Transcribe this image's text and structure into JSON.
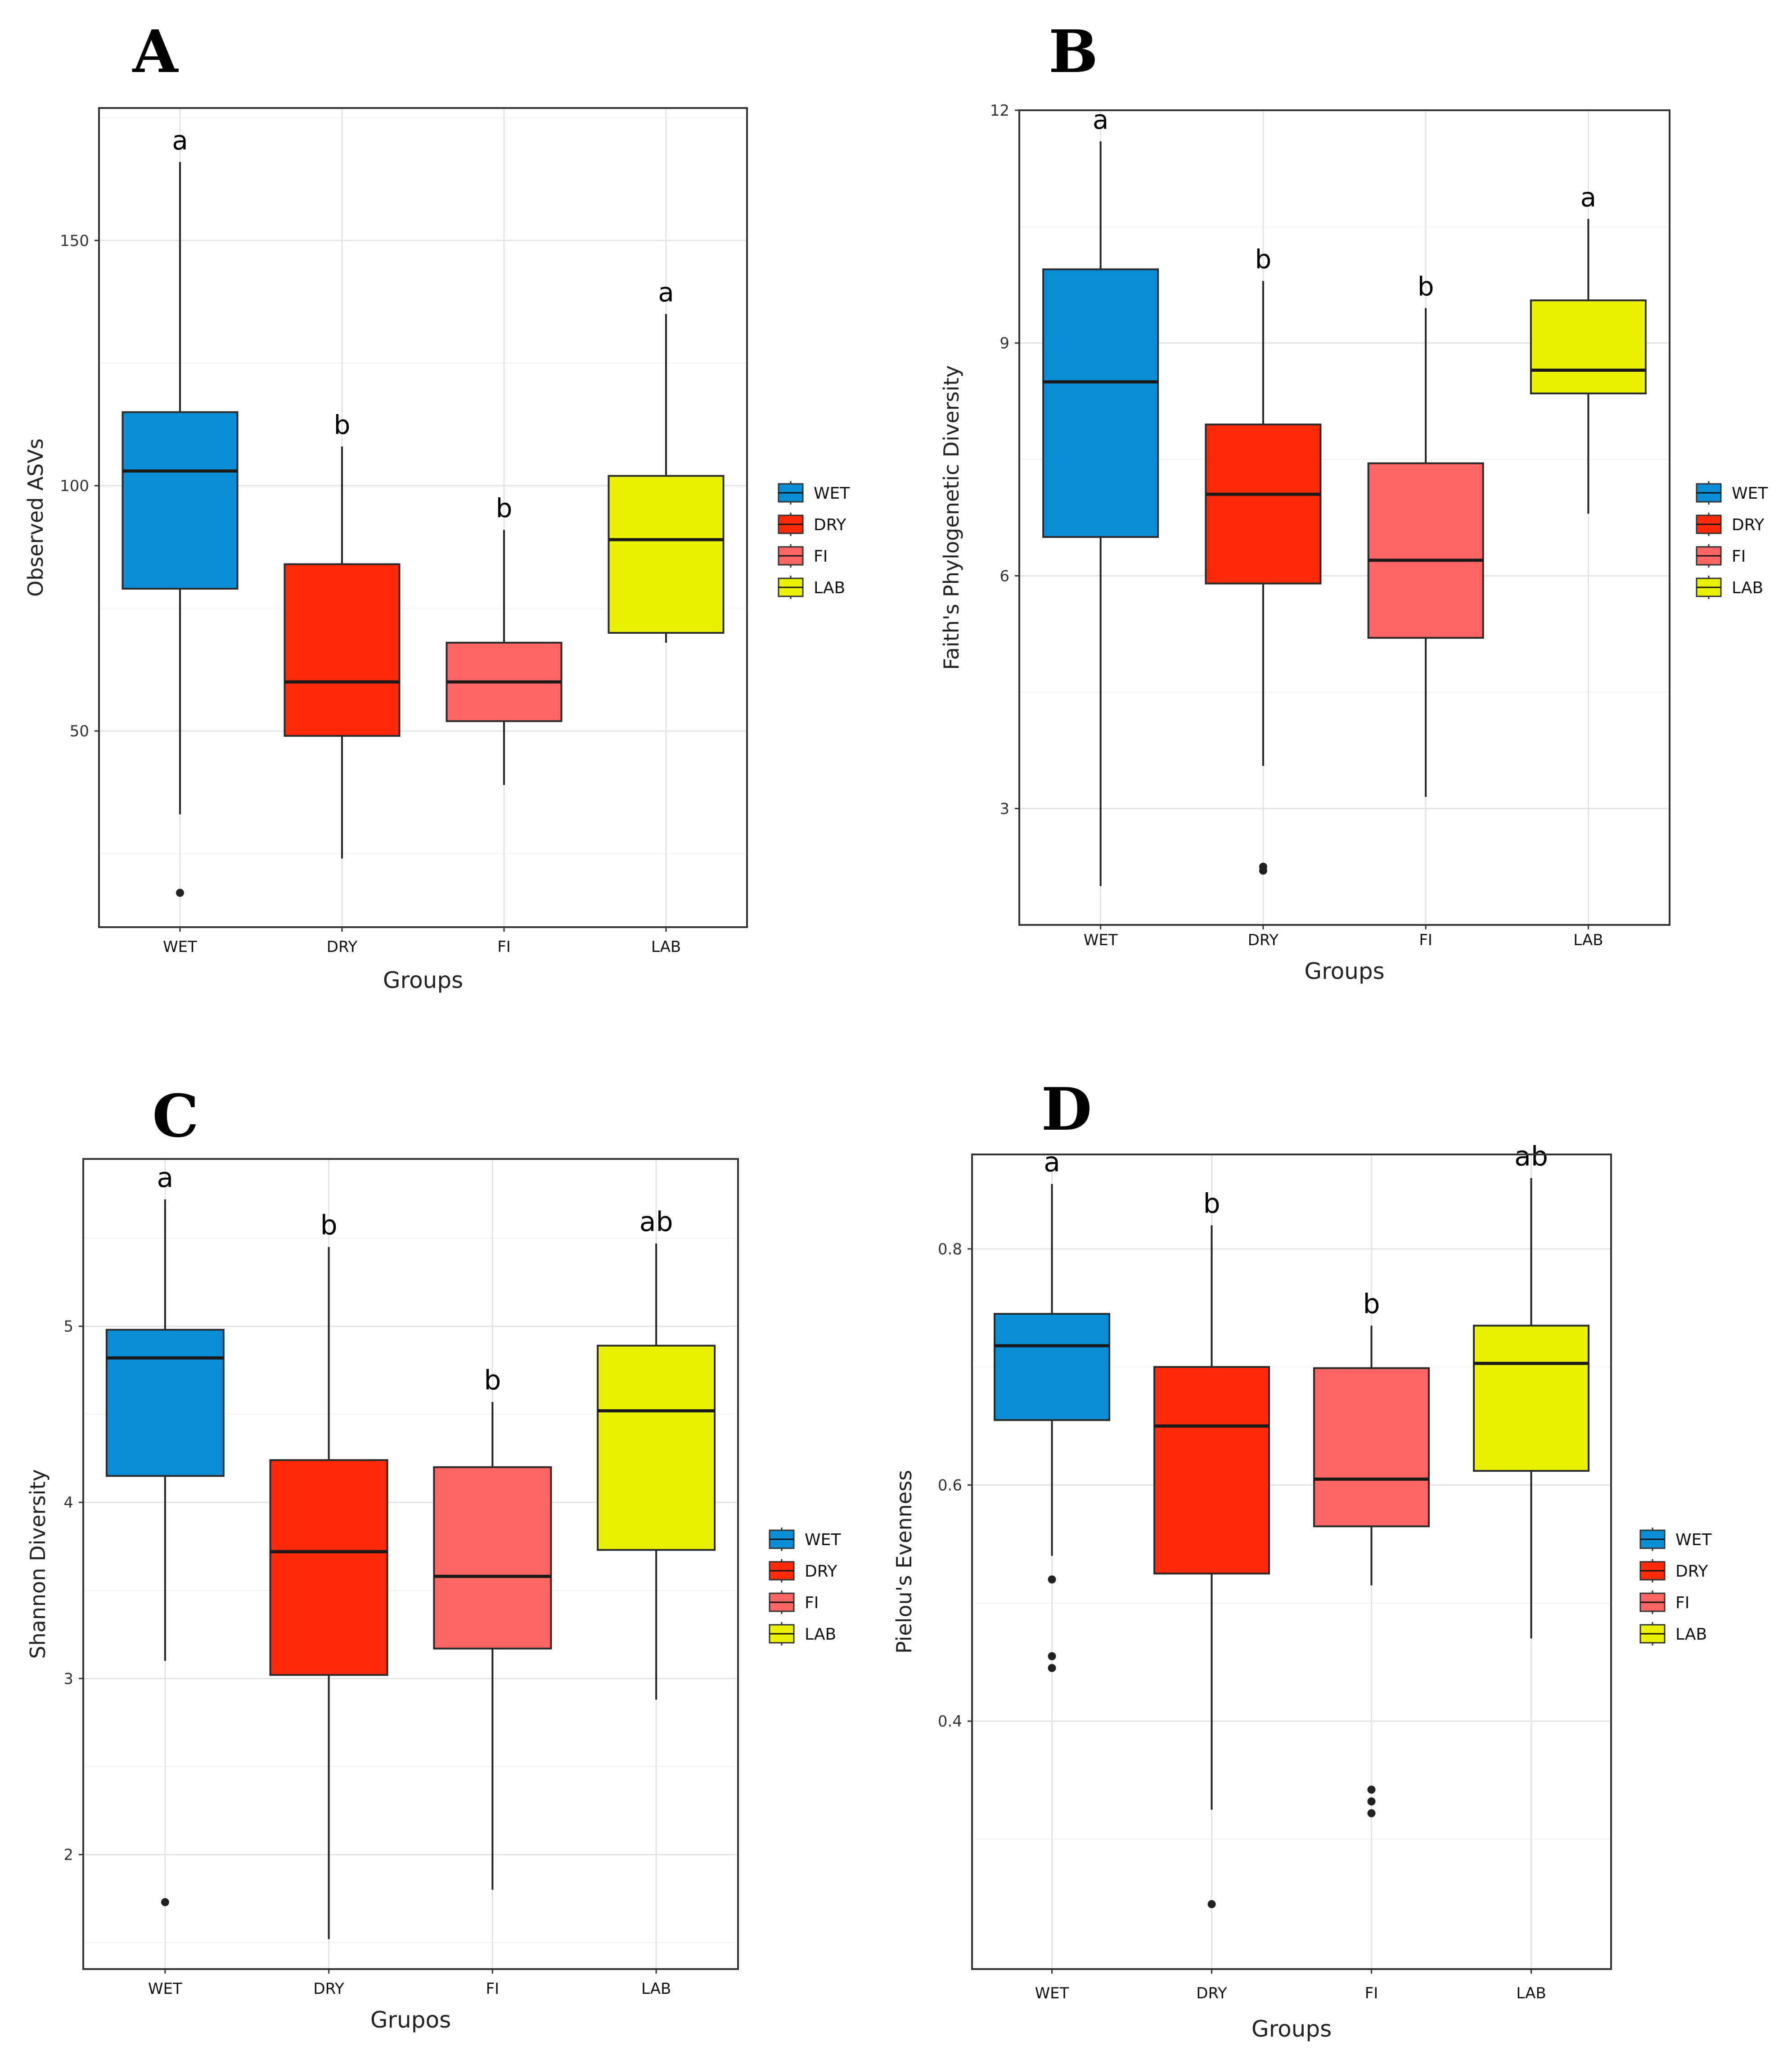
{
  "chart_data": [
    {
      "panel": "A",
      "type": "boxplot",
      "xlabel": "Groups",
      "ylabel": "Observed ASVs",
      "ylim": [
        10,
        177
      ],
      "yticks": [
        50,
        100,
        150
      ],
      "categories": [
        "WET",
        "DRY",
        "FI",
        "LAB"
      ],
      "colors": [
        "#0a8fd6",
        "#ff2a0a",
        "#fe6565",
        "#eaf200"
      ],
      "boxes": [
        {
          "group": "WET",
          "min": 33,
          "q1": 79,
          "median": 103,
          "q3": 115,
          "max": 166,
          "outliers": [
            17
          ]
        },
        {
          "group": "DRY",
          "min": 24,
          "q1": 49,
          "median": 60,
          "q3": 84,
          "max": 108,
          "outliers": []
        },
        {
          "group": "FI",
          "min": 39,
          "q1": 52,
          "median": 60,
          "q3": 68,
          "max": 91,
          "outliers": []
        },
        {
          "group": "LAB",
          "min": 68,
          "q1": 70,
          "median": 89,
          "q3": 102,
          "max": 135,
          "outliers": []
        }
      ],
      "sig_letters": [
        "a",
        "b",
        "b",
        "a"
      ],
      "legend": [
        "WET",
        "DRY",
        "FI",
        "LAB"
      ]
    },
    {
      "panel": "B",
      "type": "boxplot",
      "xlabel": "Groups",
      "ylabel": "Faith's Phylogenetic Diversity",
      "ylim": [
        1.5,
        12.0
      ],
      "yticks": [
        3,
        6,
        9,
        12
      ],
      "categories": [
        "WET",
        "DRY",
        "FI",
        "LAB"
      ],
      "colors": [
        "#0a8fd6",
        "#ff2a0a",
        "#fe6565",
        "#eaf200"
      ],
      "boxes": [
        {
          "group": "WET",
          "min": 2.0,
          "q1": 6.5,
          "median": 8.5,
          "q3": 9.95,
          "max": 11.6,
          "outliers": []
        },
        {
          "group": "DRY",
          "min": 3.55,
          "q1": 5.9,
          "median": 7.05,
          "q3": 7.95,
          "max": 9.8,
          "outliers": [
            2.2,
            2.25
          ]
        },
        {
          "group": "FI",
          "min": 3.15,
          "q1": 5.2,
          "median": 6.2,
          "q3": 7.45,
          "max": 9.45,
          "outliers": []
        },
        {
          "group": "LAB",
          "min": 6.8,
          "q1": 8.35,
          "median": 8.65,
          "q3": 9.55,
          "max": 10.6,
          "outliers": []
        }
      ],
      "sig_letters": [
        "a",
        "b",
        "b",
        "a"
      ],
      "legend": [
        "WET",
        "DRY",
        "FI",
        "LAB"
      ]
    },
    {
      "panel": "C",
      "type": "boxplot",
      "xlabel": "Grupos",
      "ylabel": "Shannon Diversity",
      "ylim": [
        1.35,
        5.95
      ],
      "yticks": [
        2,
        3,
        4,
        5
      ],
      "categories": [
        "WET",
        "DRY",
        "FI",
        "LAB"
      ],
      "colors": [
        "#0a8fd6",
        "#ff2a0a",
        "#fe6565",
        "#eaf200"
      ],
      "boxes": [
        {
          "group": "WET",
          "min": 3.1,
          "q1": 4.15,
          "median": 4.82,
          "q3": 4.98,
          "max": 5.72,
          "outliers": [
            1.73
          ]
        },
        {
          "group": "DRY",
          "min": 1.52,
          "q1": 3.02,
          "median": 3.72,
          "q3": 4.24,
          "max": 5.45,
          "outliers": []
        },
        {
          "group": "FI",
          "min": 1.8,
          "q1": 3.17,
          "median": 3.58,
          "q3": 4.2,
          "max": 4.57,
          "outliers": []
        },
        {
          "group": "LAB",
          "min": 2.88,
          "q1": 3.73,
          "median": 4.52,
          "q3": 4.89,
          "max": 5.47,
          "outliers": []
        }
      ],
      "sig_letters": [
        "a",
        "b",
        "b",
        "ab"
      ],
      "legend": [
        "WET",
        "DRY",
        "FI",
        "LAB"
      ]
    },
    {
      "panel": "D",
      "type": "boxplot",
      "xlabel": "Groups",
      "ylabel": "Pielou's Evenness",
      "ylim": [
        0.19,
        0.88
      ],
      "yticks": [
        0.4,
        0.6,
        0.8
      ],
      "categories": [
        "WET",
        "DRY",
        "FI",
        "LAB"
      ],
      "colors": [
        "#0a8fd6",
        "#ff2a0a",
        "#fe6565",
        "#eaf200"
      ],
      "boxes": [
        {
          "group": "WET",
          "min": 0.54,
          "q1": 0.655,
          "median": 0.718,
          "q3": 0.745,
          "max": 0.855,
          "outliers": [
            0.52,
            0.455,
            0.445
          ]
        },
        {
          "group": "DRY",
          "min": 0.325,
          "q1": 0.525,
          "median": 0.65,
          "q3": 0.7,
          "max": 0.82,
          "outliers": [
            0.245
          ]
        },
        {
          "group": "FI",
          "min": 0.515,
          "q1": 0.565,
          "median": 0.605,
          "q3": 0.699,
          "max": 0.735,
          "outliers": [
            0.342,
            0.332,
            0.322
          ]
        },
        {
          "group": "LAB",
          "min": 0.47,
          "q1": 0.612,
          "median": 0.703,
          "q3": 0.735,
          "max": 0.86,
          "outliers": []
        }
      ],
      "sig_letters": [
        "a",
        "b",
        "b",
        "ab"
      ],
      "legend": [
        "WET",
        "DRY",
        "FI",
        "LAB"
      ]
    }
  ]
}
